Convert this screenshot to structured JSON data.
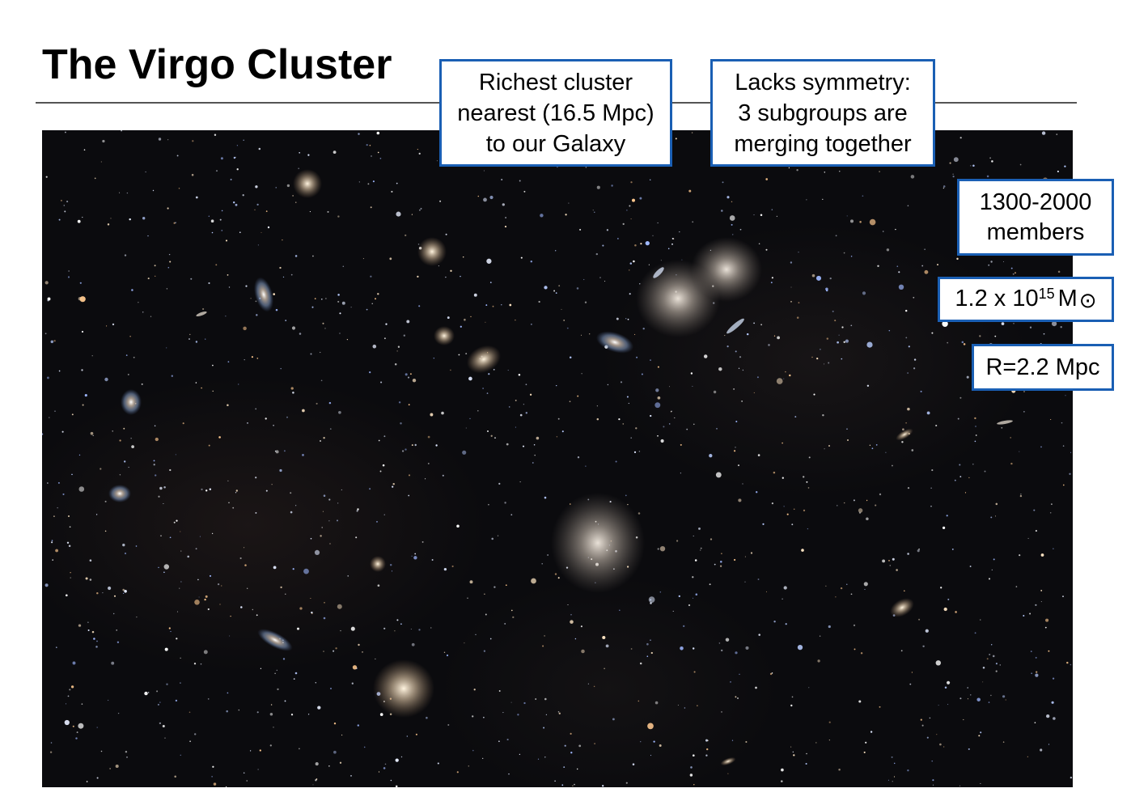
{
  "title": "The Virgo Cluster",
  "callouts": {
    "richest": [
      "Richest cluster",
      "nearest (16.5 Mpc)",
      "to our Galaxy"
    ],
    "symmetry": [
      "Lacks symmetry:",
      "3 subgroups are",
      "merging together"
    ],
    "members": [
      "1300-2000",
      "members"
    ],
    "mass": {
      "base": "1.2 x 10",
      "exponent": "15",
      "unit": "M",
      "symbol": "⊙"
    },
    "radius": "R=2.2 Mpc"
  },
  "colors": {
    "callout_border": "#1a5fb4",
    "sky_background": "#0b0b0e",
    "rule": "#555555"
  }
}
